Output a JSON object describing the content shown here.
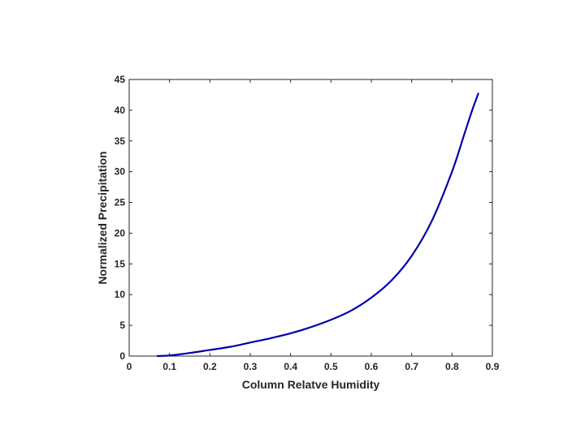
{
  "chart_data": {
    "type": "line",
    "title": "",
    "xlabel": "Column Relatve Humidity",
    "ylabel": "Normalized Precipitation",
    "xlim": [
      0,
      0.9
    ],
    "ylim": [
      0,
      45
    ],
    "x_ticks": [
      "0",
      "0.1",
      "0.2",
      "0.3",
      "0.4",
      "0.5",
      "0.6",
      "0.7",
      "0.8",
      "0.9"
    ],
    "y_ticks": [
      "0",
      "5",
      "10",
      "15",
      "20",
      "25",
      "30",
      "35",
      "40",
      "45"
    ],
    "grid": false,
    "legend": "none",
    "series": [
      {
        "color": "#0000a8",
        "x": [
          0.07,
          0.1,
          0.15,
          0.2,
          0.25,
          0.3,
          0.35,
          0.4,
          0.45,
          0.5,
          0.55,
          0.6,
          0.65,
          0.7,
          0.75,
          0.8,
          0.83,
          0.85,
          0.865
        ],
        "y": [
          0,
          0.1,
          0.5,
          1.0,
          1.5,
          2.2,
          2.9,
          3.7,
          4.7,
          5.9,
          7.4,
          9.5,
          12.3,
          16.3,
          22.0,
          30.0,
          36.0,
          40.0,
          42.7
        ]
      }
    ]
  }
}
